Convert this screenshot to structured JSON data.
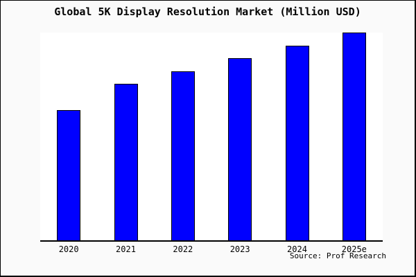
{
  "chart_data": {
    "type": "bar",
    "title": "Global 5K Display Resolution Market (Million USD)",
    "categories": [
      "2020",
      "2021",
      "2022",
      "2023",
      "2024",
      "2025e"
    ],
    "values": [
      62.7,
      75.2,
      81.3,
      87.7,
      93.8,
      100
    ],
    "values_note": "no y-axis or data labels shown; values estimated from bar heights, normalized so 2025e = 100",
    "xlabel": "",
    "ylabel": "",
    "ylim": [
      0,
      100
    ],
    "grid": false,
    "legend": "none",
    "source_note": "Source: Prof Research",
    "bar_color": "#0000ff",
    "bar_border_color": "#000000"
  },
  "colors": {
    "figure_background": "#fafafa",
    "plot_background": "#ffffff",
    "frame_border": "#000000",
    "text": "#000000"
  }
}
